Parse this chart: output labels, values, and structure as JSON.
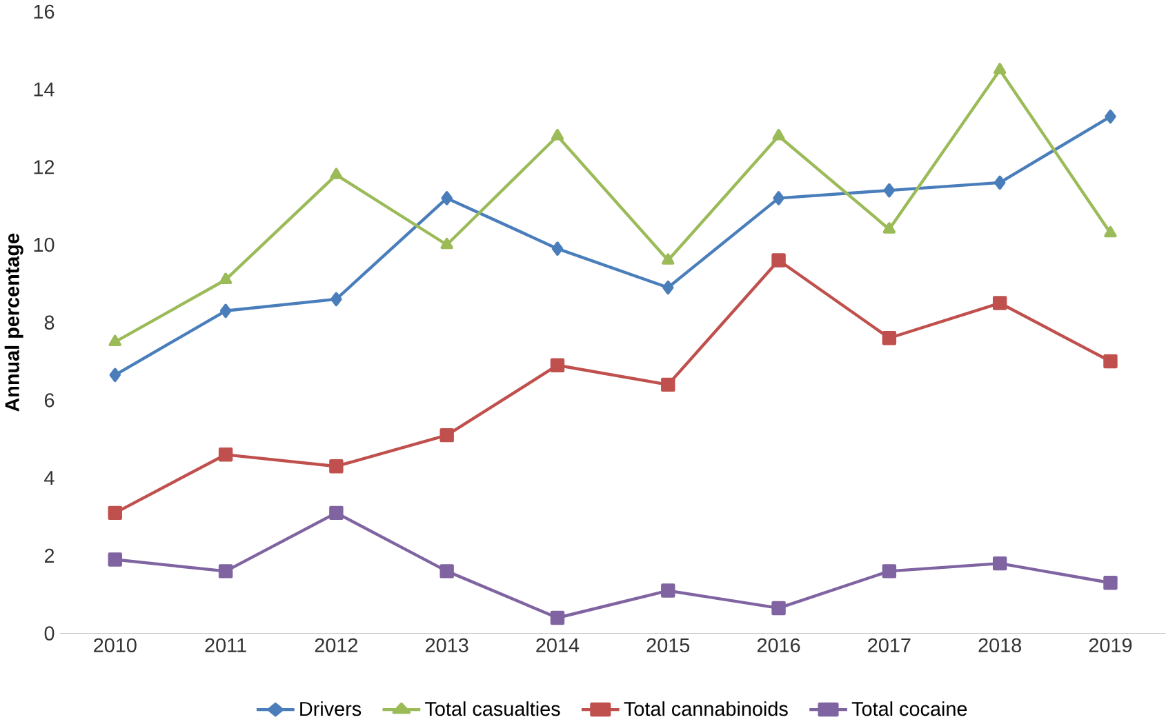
{
  "chart_data": {
    "type": "line",
    "ylabel": "Annual percentage",
    "categories": [
      "2010",
      "2011",
      "2012",
      "2013",
      "2014",
      "2015",
      "2016",
      "2017",
      "2018",
      "2019"
    ],
    "series": [
      {
        "name": "Drivers",
        "color": "#4a7ebb",
        "marker": "diamond",
        "values": [
          6.65,
          8.3,
          8.6,
          11.2,
          9.9,
          8.9,
          11.2,
          11.4,
          11.6,
          13.3
        ]
      },
      {
        "name": "Total casualties",
        "color": "#9bbb59",
        "marker": "triangle",
        "values": [
          7.5,
          9.1,
          11.8,
          10.0,
          12.8,
          9.6,
          12.8,
          10.4,
          14.5,
          10.3
        ]
      },
      {
        "name": "Total cannabinoids",
        "color": "#c0504d",
        "marker": "square",
        "values": [
          3.1,
          4.6,
          4.3,
          5.1,
          6.9,
          6.4,
          9.6,
          7.6,
          8.5,
          7.0
        ]
      },
      {
        "name": "Total cocaine",
        "color": "#8064a2",
        "marker": "square",
        "values": [
          1.9,
          1.6,
          3.1,
          1.6,
          0.4,
          1.1,
          0.65,
          1.6,
          1.8,
          1.3
        ]
      }
    ],
    "ylim": [
      0,
      16
    ],
    "yticks": [
      0,
      2,
      4,
      6,
      8,
      10,
      12,
      14,
      16
    ],
    "grid": false,
    "legend": "bottom",
    "line_style": "solid"
  }
}
